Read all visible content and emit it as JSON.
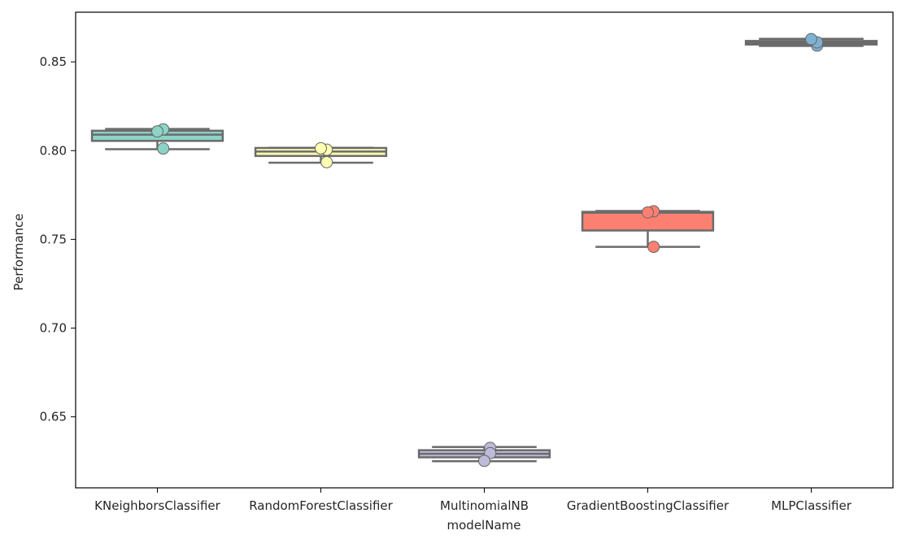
{
  "chart_data": {
    "type": "box",
    "title": "",
    "xlabel": "modelName",
    "ylabel": "Performance",
    "ylim": [
      0.61,
      0.878
    ],
    "yticks": [
      0.65,
      0.7,
      0.75,
      0.8,
      0.85
    ],
    "ytick_labels": [
      "0.65",
      "0.70",
      "0.75",
      "0.80",
      "0.85"
    ],
    "grid": false,
    "legend": "none",
    "categories": [
      "KNeighborsClassifier",
      "RandomForestClassifier",
      "MultinomialNB",
      "GradientBoostingClassifier",
      "MLPClassifier"
    ],
    "boxes": [
      {
        "category": "KNeighborsClassifier",
        "color": "#8dd3c7",
        "whisker_low": 0.8008,
        "q1": 0.8055,
        "median": 0.809,
        "q3": 0.8112,
        "whisker_high": 0.8122,
        "points": [
          0.8012,
          0.812,
          0.8108
        ]
      },
      {
        "category": "RandomForestClassifier",
        "color": "#ffffb3",
        "whisker_low": 0.7932,
        "q1": 0.797,
        "median": 0.7995,
        "q3": 0.8015,
        "whisker_high": 0.8016,
        "points": [
          0.7935,
          0.8005,
          0.8013
        ]
      },
      {
        "category": "MultinomialNB",
        "color": "#bebada",
        "whisker_low": 0.625,
        "q1": 0.6272,
        "median": 0.6292,
        "q3": 0.6312,
        "whisker_high": 0.633,
        "points": [
          0.6325,
          0.6295,
          0.6252
        ]
      },
      {
        "category": "GradientBoostingClassifier",
        "color": "#fb8072",
        "whisker_low": 0.7458,
        "q1": 0.755,
        "median": 0.765,
        "q3": 0.7655,
        "whisker_high": 0.766,
        "points": [
          0.7658,
          0.7458,
          0.7652
        ]
      },
      {
        "category": "MLPClassifier",
        "color": "#80b1d3",
        "whisker_low": 0.859,
        "q1": 0.8598,
        "median": 0.8608,
        "q3": 0.8618,
        "whisker_high": 0.863,
        "points": [
          0.8592,
          0.861,
          0.8628
        ]
      }
    ]
  }
}
